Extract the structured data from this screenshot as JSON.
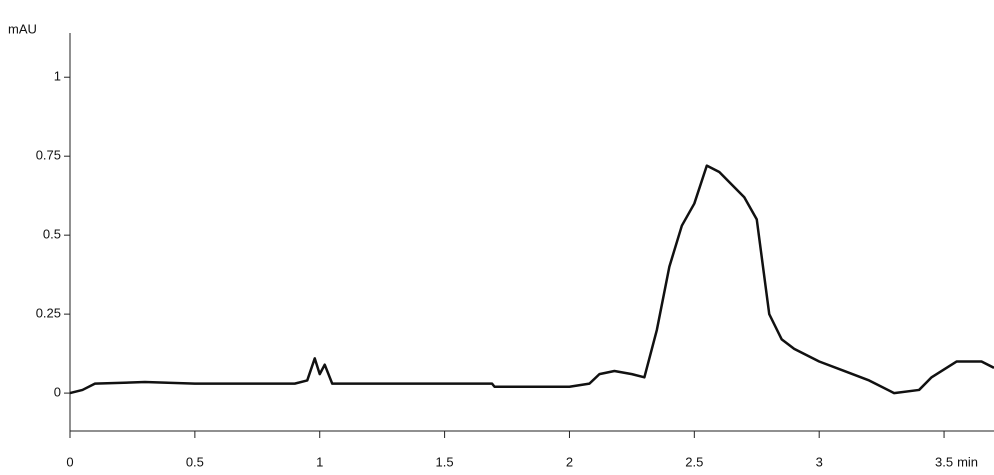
{
  "chart_data": {
    "type": "line",
    "y_label": "mAU",
    "x_label": "min",
    "x": [
      0,
      0.05,
      0.1,
      0.3,
      0.5,
      0.9,
      0.95,
      0.98,
      1.0,
      1.02,
      1.05,
      1.2,
      1.5,
      1.69,
      1.7,
      2.0,
      2.08,
      2.12,
      2.18,
      2.25,
      2.3,
      2.35,
      2.4,
      2.45,
      2.5,
      2.55,
      2.6,
      2.65,
      2.7,
      2.75,
      2.8,
      2.85,
      2.9,
      3.0,
      3.1,
      3.2,
      3.3,
      3.4,
      3.45,
      3.55,
      3.65,
      3.7
    ],
    "series": [
      {
        "color": "#111111",
        "values": [
          0,
          0.01,
          0.03,
          0.035,
          0.03,
          0.03,
          0.04,
          0.11,
          0.06,
          0.09,
          0.03,
          0.03,
          0.03,
          0.03,
          0.02,
          0.02,
          0.03,
          0.06,
          0.07,
          0.06,
          0.05,
          0.2,
          0.4,
          0.53,
          0.6,
          0.72,
          0.7,
          0.66,
          0.62,
          0.55,
          0.25,
          0.17,
          0.14,
          0.1,
          0.07,
          0.04,
          0,
          0.01,
          0.05,
          0.1,
          0.1,
          0.08
        ]
      }
    ],
    "xlim": [
      0,
      3.7
    ],
    "ylim": [
      -0.12,
      1.14
    ],
    "xticks": [
      0,
      0.5,
      1,
      1.5,
      2,
      2.5,
      3,
      3.5
    ],
    "yticks": [
      0,
      0.25,
      0.5,
      0.75,
      1
    ]
  }
}
